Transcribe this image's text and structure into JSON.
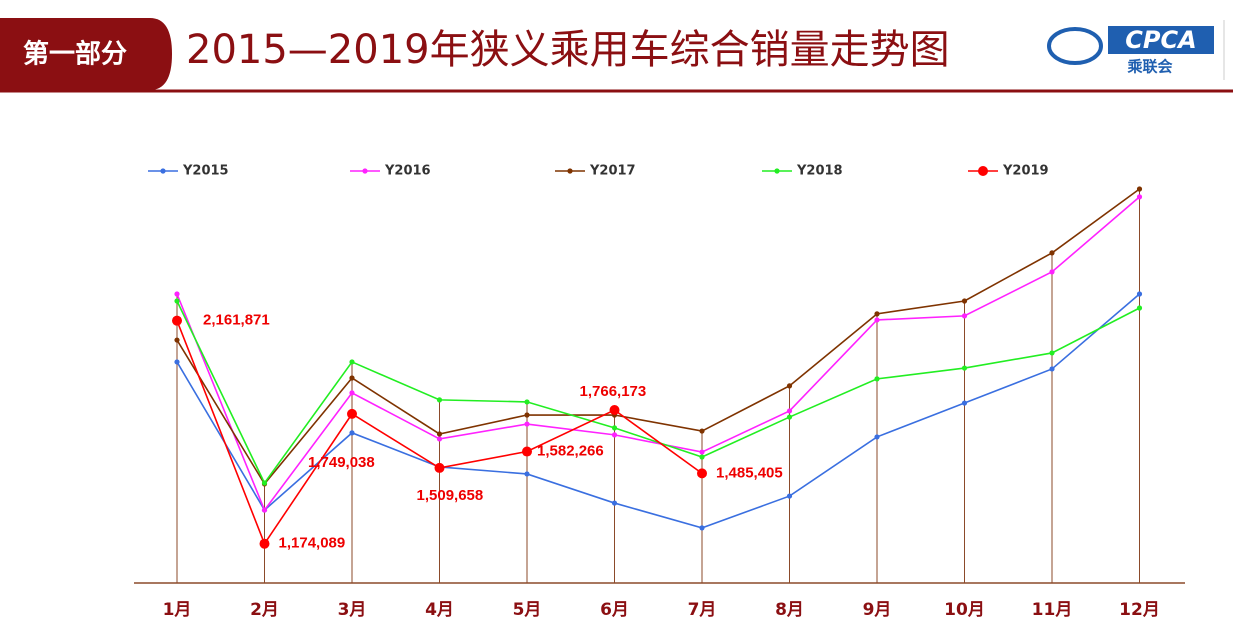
{
  "header": {
    "section": "第一部分",
    "logo_text": "CPCA",
    "logo_subtitle": "乘联会"
  },
  "chart_data": {
    "type": "line",
    "title": "2015—2019年狭义乘用车综合销量走势图",
    "categories": [
      "1月",
      "2月",
      "3月",
      "4月",
      "5月",
      "6月",
      "7月",
      "8月",
      "9月",
      "10月",
      "11月",
      "12月"
    ],
    "ylim": [
      1000000,
      2900000
    ],
    "legend": "top",
    "series": [
      {
        "name": "Y2015",
        "color": "#3a6fe0",
        "values": [
          1979000,
          1323000,
          1665000,
          1514000,
          1483000,
          1354000,
          1244000,
          1385000,
          1647000,
          1797000,
          1948000,
          2280000
        ]
      },
      {
        "name": "Y2016",
        "color": "#ff22ff",
        "values": [
          2280000,
          1323000,
          1842000,
          1638000,
          1704000,
          1656000,
          1580000,
          1762000,
          2165000,
          2183000,
          2378000,
          2710000
        ]
      },
      {
        "name": "Y2017",
        "color": "#7f3300",
        "values": [
          2076000,
          1439000,
          1908000,
          1660000,
          1744000,
          1744000,
          1673000,
          1873000,
          2192000,
          2249000,
          2462000,
          2745000
        ]
      },
      {
        "name": "Y2018",
        "color": "#22ee22",
        "values": [
          2249000,
          1443000,
          1979000,
          1811000,
          1802000,
          1687000,
          1558000,
          1735000,
          1904000,
          1952000,
          2019000,
          2218000
        ]
      },
      {
        "name": "Y2019",
        "color": "#ff0000",
        "values": [
          2161871,
          1174089,
          1749038,
          1509658,
          1582266,
          1766173,
          1485405,
          null,
          null,
          null,
          null,
          null
        ],
        "value_labels": [
          "2,161,871",
          "1,174,089",
          "1,749,038",
          "1,509,658",
          "1,582,266",
          "1,766,173",
          "1,485,405",
          null,
          null,
          null,
          null,
          null
        ]
      }
    ]
  }
}
